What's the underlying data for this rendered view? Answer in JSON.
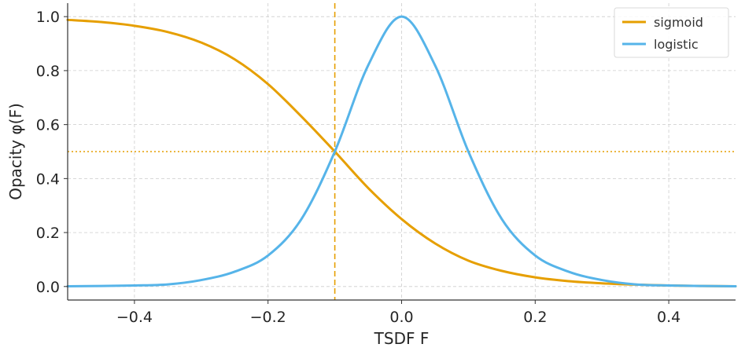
{
  "chart_data": {
    "type": "line",
    "title": "",
    "xlabel": "TSDF F",
    "ylabel": "Opacity φ(F)",
    "xlim": [
      -0.5,
      0.5
    ],
    "ylim": [
      -0.05,
      1.05
    ],
    "x_ticks": [
      -0.4,
      -0.2,
      0.0,
      0.2,
      0.4
    ],
    "x_tick_labels": [
      "−0.4",
      "−0.2",
      "0.0",
      "0.2",
      "0.4"
    ],
    "y_ticks": [
      0.0,
      0.2,
      0.4,
      0.6,
      0.8,
      1.0
    ],
    "y_tick_labels": [
      "0.0",
      "0.2",
      "0.4",
      "0.6",
      "0.8",
      "1.0"
    ],
    "grid": true,
    "legend_position": "top-right",
    "series": [
      {
        "name": "sigmoid",
        "color": "#E69F00",
        "x": [
          -0.5,
          -0.45,
          -0.4,
          -0.35,
          -0.3,
          -0.25,
          -0.2,
          -0.15,
          -0.1,
          -0.05,
          0.0,
          0.05,
          0.1,
          0.15,
          0.2,
          0.25,
          0.3,
          0.35,
          0.4,
          0.45,
          0.5
        ],
        "y": [
          0.988,
          0.98,
          0.966,
          0.943,
          0.904,
          0.842,
          0.75,
          0.63,
          0.5,
          0.365,
          0.25,
          0.16,
          0.096,
          0.058,
          0.034,
          0.02,
          0.012,
          0.007,
          0.004,
          0.002,
          0.001
        ]
      },
      {
        "name": "logistic",
        "color": "#56B4E9",
        "x": [
          -0.5,
          -0.45,
          -0.4,
          -0.35,
          -0.3,
          -0.25,
          -0.2,
          -0.15,
          -0.1,
          -0.05,
          0.0,
          0.05,
          0.1,
          0.15,
          0.2,
          0.25,
          0.3,
          0.35,
          0.4,
          0.45,
          0.5
        ],
        "y": [
          0.001,
          0.002,
          0.004,
          0.008,
          0.024,
          0.055,
          0.115,
          0.25,
          0.5,
          0.82,
          1.0,
          0.82,
          0.5,
          0.25,
          0.115,
          0.055,
          0.024,
          0.008,
          0.004,
          0.002,
          0.001
        ]
      }
    ],
    "reference_lines": [
      {
        "orientation": "vertical",
        "value": -0.1,
        "style": "dashed",
        "color": "#E69F00"
      },
      {
        "orientation": "horizontal",
        "value": 0.5,
        "style": "dotted",
        "color": "#E69F00"
      }
    ]
  }
}
